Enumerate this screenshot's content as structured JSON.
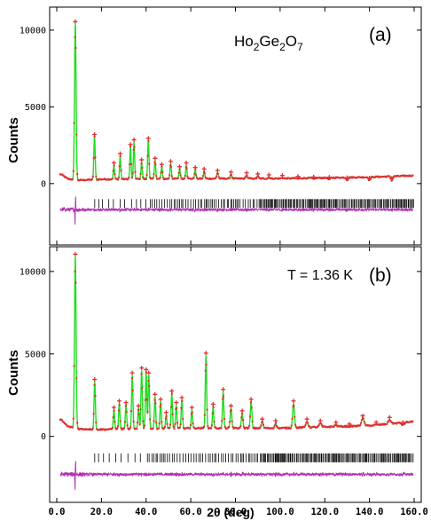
{
  "chart_data": [
    {
      "type": "line",
      "panel_label": "(a)",
      "formula": {
        "base1": "Ho",
        "sub1": "2",
        "base2": "Ge",
        "sub2": "2",
        "base3": "O",
        "sub3": "7"
      },
      "annotation": "",
      "xlabel": "",
      "ylabel": "Counts",
      "xlim": [
        0,
        160
      ],
      "ylim": [
        -4000,
        11500
      ],
      "yticks": [
        0,
        5000,
        10000
      ],
      "yticklabels": [
        "0",
        "5000",
        "10000"
      ],
      "colors": {
        "observed": "#e03030",
        "calculated": "#22dd22",
        "difference": "#b030b0",
        "reflections": "#000000"
      },
      "background": [
        [
          2,
          600
        ],
        [
          5,
          300
        ],
        [
          10,
          220
        ],
        [
          20,
          280
        ],
        [
          60,
          320
        ],
        [
          100,
          330
        ],
        [
          140,
          420
        ],
        [
          160,
          520
        ]
      ],
      "peaks": [
        [
          8.3,
          10400,
          0.35
        ],
        [
          16.9,
          3050,
          0.3
        ],
        [
          25.6,
          1200,
          0.28
        ],
        [
          28.4,
          1800,
          0.28
        ],
        [
          33.0,
          2400,
          0.28
        ],
        [
          34.6,
          2700,
          0.28
        ],
        [
          38.0,
          1400,
          0.28
        ],
        [
          41.0,
          2800,
          0.3
        ],
        [
          44.0,
          1500,
          0.3
        ],
        [
          47.0,
          1100,
          0.3
        ],
        [
          51.0,
          1300,
          0.3
        ],
        [
          55.0,
          950,
          0.3
        ],
        [
          58.0,
          1200,
          0.3
        ],
        [
          62.0,
          900,
          0.3
        ],
        [
          66.0,
          800,
          0.3
        ],
        [
          72.0,
          700,
          0.35
        ],
        [
          78.0,
          600,
          0.35
        ],
        [
          85.0,
          550,
          0.35
        ],
        [
          90.0,
          480,
          0.35
        ],
        [
          95.0,
          420,
          0.35
        ],
        [
          101.0,
          380,
          0.4
        ],
        [
          108.0,
          320,
          0.4
        ],
        [
          115.0,
          280,
          0.4
        ],
        [
          122.0,
          260,
          0.4
        ],
        [
          130.0,
          240,
          0.4
        ],
        [
          140.0,
          220,
          0.4
        ],
        [
          150.0,
          200,
          0.4
        ]
      ],
      "reflection_range": [
        17,
        160
      ],
      "reflection_level": -1300,
      "difference_level": -1700
    },
    {
      "type": "line",
      "panel_label": "(b)",
      "formula": null,
      "annotation": "T = 1.36 K",
      "xlabel": "2θ (deg)",
      "ylabel": "Counts",
      "xlim": [
        0,
        160
      ],
      "ylim": [
        -4000,
        11500
      ],
      "xticks": [
        0,
        20,
        40,
        60,
        80,
        100,
        120,
        140,
        160
      ],
      "xticklabels": [
        "0.0",
        "20.0",
        "40.0",
        "60.0",
        "80.0",
        "100.0",
        "120.0",
        "140.0",
        "160.0"
      ],
      "yticks": [
        0,
        5000,
        10000
      ],
      "yticklabels": [
        "0",
        "5000",
        "10000"
      ],
      "colors": {
        "observed": "#e03030",
        "calculated": "#22dd22",
        "difference": "#b030b0",
        "reflections": "#000000"
      },
      "background": [
        [
          2,
          1000
        ],
        [
          5,
          600
        ],
        [
          10,
          450
        ],
        [
          20,
          420
        ],
        [
          60,
          500
        ],
        [
          100,
          500
        ],
        [
          140,
          650
        ],
        [
          160,
          900
        ]
      ],
      "peaks": [
        [
          8.3,
          10900,
          0.35
        ],
        [
          17.0,
          3300,
          0.3
        ],
        [
          25.6,
          1600,
          0.3
        ],
        [
          28.0,
          2000,
          0.3
        ],
        [
          31.0,
          1900,
          0.3
        ],
        [
          33.8,
          3700,
          0.3
        ],
        [
          36.6,
          1700,
          0.3
        ],
        [
          38.0,
          4000,
          0.3
        ],
        [
          40.0,
          3900,
          0.3
        ],
        [
          41.2,
          3700,
          0.3
        ],
        [
          44.0,
          2400,
          0.3
        ],
        [
          46.5,
          2100,
          0.3
        ],
        [
          49.0,
          1300,
          0.3
        ],
        [
          51.5,
          2600,
          0.3
        ],
        [
          53.5,
          1900,
          0.3
        ],
        [
          56.0,
          2200,
          0.3
        ],
        [
          60.5,
          1600,
          0.3
        ],
        [
          66.8,
          4900,
          0.3
        ],
        [
          70.0,
          1800,
          0.3
        ],
        [
          74.5,
          2700,
          0.3
        ],
        [
          78.0,
          1700,
          0.35
        ],
        [
          83.0,
          1400,
          0.35
        ],
        [
          87.0,
          2100,
          0.35
        ],
        [
          92.0,
          900,
          0.4
        ],
        [
          98.0,
          800,
          0.4
        ],
        [
          106.0,
          2000,
          0.4
        ],
        [
          112.0,
          900,
          0.5
        ],
        [
          118.0,
          800,
          0.5
        ],
        [
          125.0,
          700,
          0.5
        ],
        [
          131.0,
          600,
          0.5
        ],
        [
          137.0,
          1100,
          0.6
        ],
        [
          143.0,
          700,
          0.6
        ],
        [
          149.0,
          1000,
          0.6
        ],
        [
          155.0,
          700,
          0.6
        ]
      ],
      "reflection_range": [
        17,
        160
      ],
      "reflection_level": -1300,
      "difference_level": -2300
    }
  ]
}
